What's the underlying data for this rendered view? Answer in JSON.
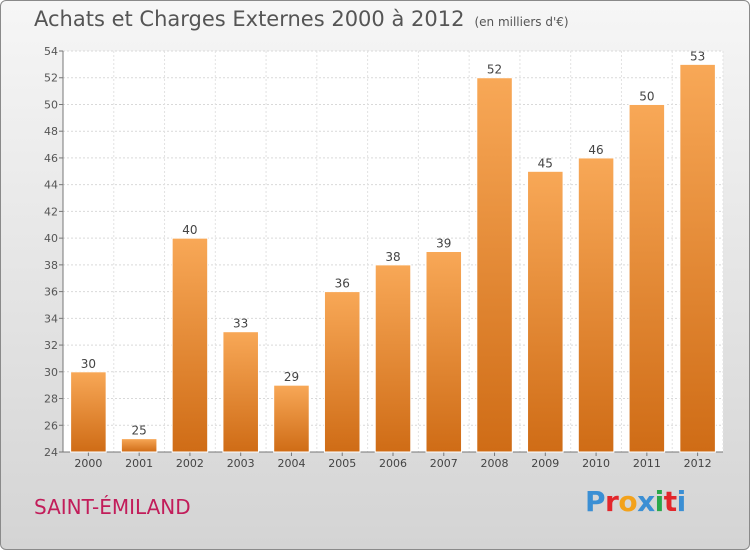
{
  "title": "Achats et Charges Externes 2000 à 2012",
  "subtitle": "(en milliers d'€)",
  "city": "SAINT-ÉMILAND",
  "logo": {
    "letters": [
      "P",
      "r",
      "o",
      "x",
      "i",
      "t",
      "i"
    ],
    "colors": [
      "#3b8fd4",
      "#e3262b",
      "#f3a21b",
      "#3b8fd4",
      "#2ba84a",
      "#e3262b",
      "#3b8fd4"
    ]
  },
  "colors": {
    "bar_light": "#f8a857",
    "bar_dark": "#cf6c16",
    "title": "#555555",
    "city": "#c21d5a"
  },
  "chart_data": {
    "type": "bar",
    "categories": [
      "2000",
      "2001",
      "2002",
      "2003",
      "2004",
      "2005",
      "2006",
      "2007",
      "2008",
      "2009",
      "2010",
      "2011",
      "2012"
    ],
    "values": [
      30,
      25,
      40,
      33,
      29,
      36,
      38,
      39,
      52,
      45,
      46,
      50,
      53
    ],
    "title": "Achats et Charges Externes 2000 à 2012",
    "subtitle": "(en milliers d'€)",
    "xlabel": "",
    "ylabel": "",
    "ylim": [
      24,
      54
    ],
    "yticks": [
      24,
      26,
      28,
      30,
      32,
      34,
      36,
      38,
      40,
      42,
      44,
      46,
      48,
      50,
      52,
      54
    ],
    "grid": true,
    "data_labels": true
  }
}
